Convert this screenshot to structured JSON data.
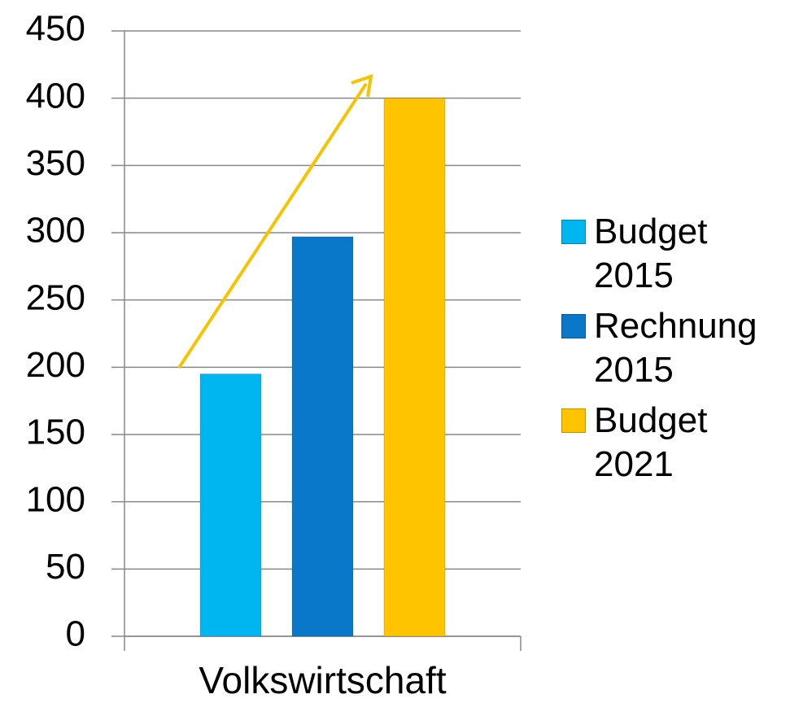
{
  "chart_data": {
    "type": "bar",
    "categories": [
      "Volkswirtschaft"
    ],
    "series": [
      {
        "name": "Budget 2015",
        "color": "#00b6f0",
        "values": [
          195
        ]
      },
      {
        "name": "Rechnung 2015",
        "color": "#0a78c8",
        "values": [
          297
        ]
      },
      {
        "name": "Budget 2021",
        "color": "#ffc400",
        "values": [
          400
        ]
      }
    ],
    "ylim": [
      0,
      450
    ],
    "yticks": [
      0,
      50,
      100,
      150,
      200,
      250,
      300,
      350,
      400,
      450
    ],
    "grid": true,
    "legend": "right"
  }
}
